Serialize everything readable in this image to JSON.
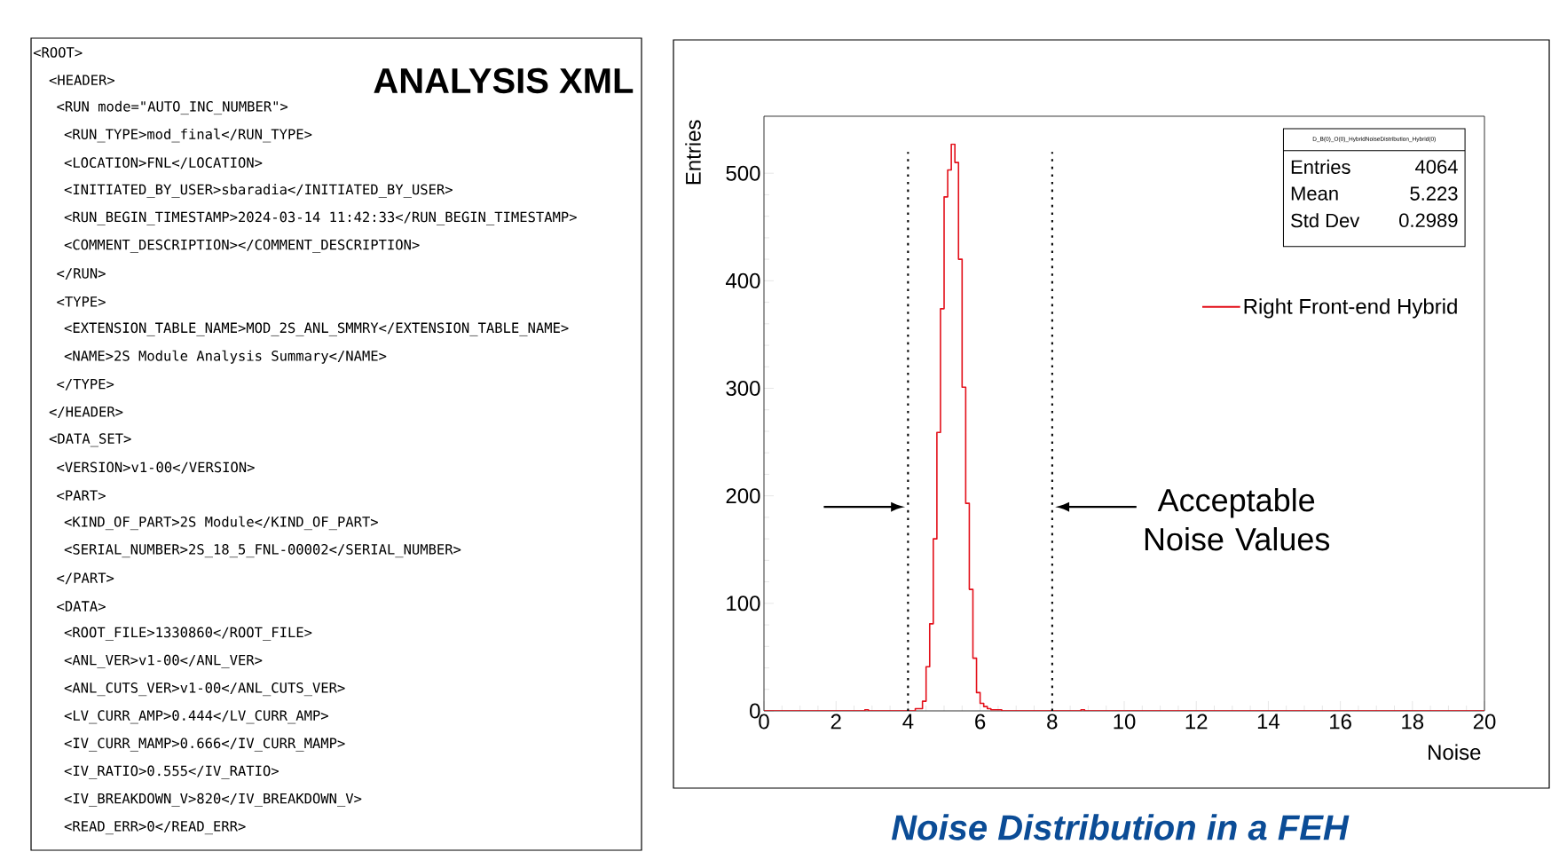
{
  "chart_data": [
    {
      "type": "other",
      "title": "ANALYSIS XML",
      "annotations": [
        "<ROOT>",
        " <HEADER>",
        "  <RUN mode=\"AUTO_INC_NUMBER\">",
        "   <RUN_TYPE>mod_final</RUN_TYPE>",
        "   <LOCATION>FNL</LOCATION>",
        "   <INITIATED_BY_USER>sbaradia</INITIATED_BY_USER>",
        "   <RUN_BEGIN_TIMESTAMP>2024-03-14 11:42:33</RUN_BEGIN_TIMESTAMP>",
        "   <COMMENT_DESCRIPTION></COMMENT_DESCRIPTION>",
        "  </RUN>",
        "  <TYPE>",
        "   <EXTENSION_TABLE_NAME>MOD_2S_ANL_SMMRY</EXTENSION_TABLE_NAME>",
        "   <NAME>2S Module Analysis Summary</NAME>",
        "  </TYPE>",
        " </HEADER>",
        " <DATA_SET>",
        "  <VERSION>v1-00</VERSION>",
        "  <PART>",
        "   <KIND_OF_PART>2S Module</KIND_OF_PART>",
        "   <SERIAL_NUMBER>2S_18_5_FNL-00002</SERIAL_NUMBER>",
        "  </PART>",
        "  <DATA>",
        "   <ROOT_FILE>1330860</ROOT_FILE>",
        "   <ANL_VER>v1-00</ANL_VER>",
        "   <ANL_CUTS_VER>v1-00</ANL_CUTS_VER>",
        "   <LV_CURR_AMP>0.444</LV_CURR_AMP>",
        "   <IV_CURR_MAMP>0.666</IV_CURR_MAMP>",
        "   <IV_RATIO>0.555</IV_RATIO>",
        "   <IV_BREAKDOWN_V>820</IV_BREAKDOWN_V>",
        "   <READ_ERR>0</READ_ERR>"
      ]
    },
    {
      "type": "histogram",
      "title": "Noise Distribution in a FEH",
      "xlabel": "Noise",
      "ylabel": "Entries",
      "bins": [
        0,
        2.8,
        2.9,
        4.2,
        4.3,
        4.4,
        4.5,
        4.6,
        4.7,
        4.8,
        4.9,
        5.0,
        5.1,
        5.2,
        5.3,
        5.4,
        5.5,
        5.6,
        5.7,
        5.8,
        5.9,
        6.0,
        6.1,
        6.2,
        6.3,
        6.4,
        6.5,
        6.6,
        8.8,
        8.9,
        20
      ],
      "series": [
        {
          "name": "Right Front-end Hybrid",
          "color": "#e3101a",
          "values": [
            0,
            1,
            0,
            2,
            2,
            9,
            41,
            81,
            160,
            259,
            374,
            478,
            503,
            527,
            510,
            420,
            301,
            193,
            113,
            49,
            17,
            7,
            4,
            2,
            1,
            1,
            1,
            0,
            1,
            0
          ]
        }
      ],
      "xlim": [
        0,
        20
      ],
      "ylim": [
        0,
        553
      ],
      "xticks": [
        0,
        2,
        4,
        6,
        8,
        10,
        12,
        14,
        16,
        18,
        20
      ],
      "yticks": [
        0,
        100,
        200,
        300,
        400,
        500
      ],
      "ref_lines": [
        {
          "axis": "x",
          "value": 4,
          "color": "#000000",
          "line_style": "dotted"
        },
        {
          "axis": "x",
          "value": 8,
          "color": "#000000",
          "line_style": "dotted"
        }
      ],
      "legend": "top right",
      "annotations": [
        "D_B(0)_O(0)_HybridNoiseDistribution_Hybrid(0)",
        "Entries",
        "4064",
        "Mean",
        "5.223",
        "Std Dev",
        "0.2989",
        "Acceptable Noise Values"
      ]
    }
  ]
}
